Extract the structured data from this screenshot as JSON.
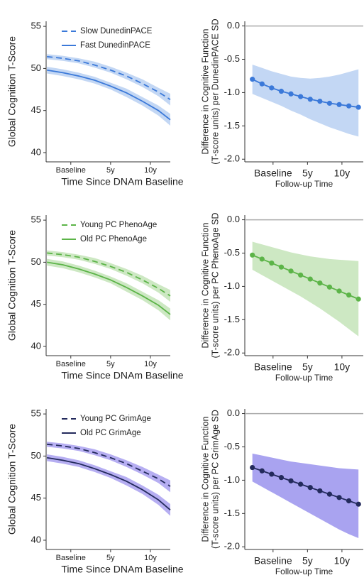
{
  "chart_data": [
    {
      "type": "line",
      "ylabel": "Global Cognition T-Score",
      "xlabel": "Time Since DNAm Baseline",
      "legend": "upper left",
      "x": [
        -3,
        -1,
        1,
        3,
        5,
        7,
        9,
        11,
        12.5
      ],
      "xlim": [
        -3.1,
        12.5
      ],
      "ylim": [
        38.9,
        55.6
      ],
      "xticks": [
        {
          "value": 0,
          "label": "Baseline"
        },
        {
          "value": 5,
          "label": "5y"
        },
        {
          "value": 10,
          "label": "10y"
        }
      ],
      "yticks": [
        40,
        45,
        50,
        55
      ],
      "series": [
        {
          "name": "Slow DunedinPACE",
          "color": "#3b79d9",
          "band_color": "#c3d7f4",
          "linestyle": "dashed",
          "values": [
            51.4,
            51.2,
            50.9,
            50.4,
            49.8,
            49.1,
            48.2,
            47.2,
            46.3
          ],
          "lower": [
            51.1,
            50.9,
            50.6,
            50.1,
            49.5,
            48.7,
            47.8,
            46.7,
            45.6
          ],
          "upper": [
            51.7,
            51.5,
            51.2,
            50.8,
            50.2,
            49.5,
            48.7,
            47.7,
            47.0
          ]
        },
        {
          "name": "Fast DunedinPACE",
          "color": "#3b79d9",
          "band_color": "#c3d7f4",
          "linestyle": "solid",
          "values": [
            49.8,
            49.5,
            49.1,
            48.6,
            47.9,
            47.1,
            46.1,
            45.0,
            43.9
          ],
          "lower": [
            49.4,
            49.1,
            48.7,
            48.2,
            47.5,
            46.6,
            45.6,
            44.4,
            43.2
          ],
          "upper": [
            50.2,
            49.9,
            49.5,
            49.0,
            48.3,
            47.6,
            46.6,
            45.6,
            44.6
          ]
        }
      ]
    },
    {
      "type": "line",
      "ylabel": [
        "Difference in Cognitive Function",
        "(T-score units) per DunedinPACE SD"
      ],
      "xlabel": "Follow-up Time",
      "markers": true,
      "refline": 0,
      "x": [
        -3,
        -1.6,
        -0.2,
        1.2,
        2.6,
        4,
        5.4,
        6.8,
        8.2,
        9.6,
        11,
        12.4
      ],
      "xlim": [
        -4.1,
        13.1
      ],
      "ylim": [
        -2.04,
        0.07
      ],
      "xticks": [
        {
          "value": 0,
          "label": "Baseline"
        },
        {
          "value": 5,
          "label": "5y"
        },
        {
          "value": 10,
          "label": "10y"
        }
      ],
      "yticks": [
        {
          "value": 0,
          "label": "0.0"
        },
        -0.5,
        {
          "value": -1,
          "label": "-1.0"
        },
        -1.5,
        {
          "value": -2,
          "label": "-2.0"
        }
      ],
      "series": [
        {
          "color": "#3b79d9",
          "band_color": "#c3d7f4",
          "linestyle": "solid",
          "values": [
            -0.8,
            -0.87,
            -0.93,
            -0.98,
            -1.02,
            -1.06,
            -1.1,
            -1.13,
            -1.16,
            -1.18,
            -1.2,
            -1.22
          ],
          "lower": [
            -1.02,
            -1.08,
            -1.14,
            -1.2,
            -1.27,
            -1.33,
            -1.4,
            -1.46,
            -1.52,
            -1.57,
            -1.62,
            -1.66
          ],
          "upper": [
            -0.58,
            -0.63,
            -0.68,
            -0.72,
            -0.76,
            -0.78,
            -0.79,
            -0.78,
            -0.76,
            -0.73,
            -0.69,
            -0.65
          ]
        }
      ]
    },
    {
      "type": "line",
      "ylabel": "Global Cognition T-Score",
      "xlabel": "Time Since DNAm Baseline",
      "legend": "upper left",
      "x": [
        -3,
        -1,
        1,
        3,
        5,
        7,
        9,
        11,
        12.5
      ],
      "xlim": [
        -3.1,
        12.5
      ],
      "ylim": [
        38.9,
        55.6
      ],
      "xticks": [
        {
          "value": 0,
          "label": "Baseline"
        },
        {
          "value": 5,
          "label": "5y"
        },
        {
          "value": 10,
          "label": "10y"
        }
      ],
      "yticks": [
        40,
        45,
        50,
        55
      ],
      "series": [
        {
          "name": "Young PC PhenoAge",
          "color": "#5cb448",
          "band_color": "#cde8c3",
          "linestyle": "dashed",
          "values": [
            51.1,
            50.9,
            50.6,
            50.1,
            49.5,
            48.8,
            47.9,
            46.9,
            46.0
          ],
          "lower": [
            50.8,
            50.6,
            50.3,
            49.8,
            49.2,
            48.4,
            47.5,
            46.4,
            45.3
          ],
          "upper": [
            51.4,
            51.2,
            50.9,
            50.5,
            49.9,
            49.2,
            48.4,
            47.4,
            46.7
          ]
        },
        {
          "name": "Old PC PhenoAge",
          "color": "#5cb448",
          "band_color": "#cde8c3",
          "linestyle": "solid",
          "values": [
            50.0,
            49.7,
            49.2,
            48.6,
            47.9,
            47.0,
            46.0,
            44.9,
            43.8
          ],
          "lower": [
            49.6,
            49.3,
            48.8,
            48.2,
            47.5,
            46.5,
            45.5,
            44.3,
            43.1
          ],
          "upper": [
            50.4,
            50.1,
            49.6,
            49.0,
            48.3,
            47.5,
            46.5,
            45.5,
            44.5
          ]
        }
      ]
    },
    {
      "type": "line",
      "ylabel": [
        "Difference in Cognitive Function",
        "(T-score units) per PC PhenoAge SD"
      ],
      "xlabel": "Follow-up Time",
      "markers": true,
      "refline": 0,
      "x": [
        -3,
        -1.6,
        -0.2,
        1.2,
        2.6,
        4,
        5.4,
        6.8,
        8.2,
        9.6,
        11,
        12.4
      ],
      "xlim": [
        -4.1,
        13.1
      ],
      "ylim": [
        -2.04,
        0.07
      ],
      "xticks": [
        {
          "value": 0,
          "label": "Baseline"
        },
        {
          "value": 5,
          "label": "5y"
        },
        {
          "value": 10,
          "label": "10y"
        }
      ],
      "yticks": [
        {
          "value": 0,
          "label": "0.0"
        },
        -0.5,
        {
          "value": -1,
          "label": "-1.0"
        },
        -1.5,
        {
          "value": -2,
          "label": "-2.0"
        }
      ],
      "series": [
        {
          "color": "#5cb448",
          "band_color": "#cde8c3",
          "linestyle": "solid",
          "values": [
            -0.53,
            -0.59,
            -0.65,
            -0.71,
            -0.77,
            -0.83,
            -0.89,
            -0.95,
            -1.01,
            -1.07,
            -1.13,
            -1.19
          ],
          "lower": [
            -0.75,
            -0.83,
            -0.91,
            -0.99,
            -1.07,
            -1.15,
            -1.24,
            -1.33,
            -1.43,
            -1.53,
            -1.64,
            -1.75
          ],
          "upper": [
            -0.33,
            -0.37,
            -0.41,
            -0.45,
            -0.49,
            -0.52,
            -0.55,
            -0.57,
            -0.59,
            -0.6,
            -0.61,
            -0.62
          ]
        }
      ]
    },
    {
      "type": "line",
      "ylabel": "Global Cognition T-Score",
      "xlabel": "Time Since DNAm Baseline",
      "legend": "upper left",
      "x": [
        -3,
        -1,
        1,
        3,
        5,
        7,
        9,
        11,
        12.5
      ],
      "xlim": [
        -3.1,
        12.5
      ],
      "ylim": [
        38.9,
        55.6
      ],
      "xticks": [
        {
          "value": 0,
          "label": "Baseline"
        },
        {
          "value": 5,
          "label": "5y"
        },
        {
          "value": 10,
          "label": "10y"
        }
      ],
      "yticks": [
        40,
        45,
        50,
        55
      ],
      "series": [
        {
          "name": "Young PC GrimAge",
          "color": "#232a5c",
          "band_color": "#b6aef2",
          "linestyle": "dashed",
          "values": [
            51.4,
            51.2,
            50.9,
            50.4,
            49.8,
            49.1,
            48.2,
            47.3,
            46.4
          ],
          "lower": [
            51.1,
            50.9,
            50.6,
            50.1,
            49.5,
            48.7,
            47.8,
            46.8,
            45.7
          ],
          "upper": [
            51.7,
            51.5,
            51.2,
            50.8,
            50.2,
            49.5,
            48.7,
            47.8,
            47.1
          ]
        },
        {
          "name": "Old PC GrimAge",
          "color": "#232a5c",
          "band_color": "#b6aef2",
          "linestyle": "solid",
          "values": [
            49.8,
            49.5,
            49.1,
            48.5,
            47.8,
            47.0,
            46.0,
            44.8,
            43.6
          ],
          "lower": [
            49.4,
            49.1,
            48.7,
            48.1,
            47.4,
            46.5,
            45.5,
            44.2,
            42.9
          ],
          "upper": [
            50.2,
            49.9,
            49.5,
            48.9,
            48.2,
            47.5,
            46.5,
            45.4,
            44.3
          ]
        }
      ]
    },
    {
      "type": "line",
      "ylabel": [
        "Difference in Cognitive Function",
        "(T-score units) per PC GrimAge SD"
      ],
      "xlabel": "Follow-up Time",
      "markers": true,
      "refline": 0,
      "x": [
        -3,
        -1.6,
        -0.2,
        1.2,
        2.6,
        4,
        5.4,
        6.8,
        8.2,
        9.6,
        11,
        12.4
      ],
      "xlim": [
        -4.1,
        13.1
      ],
      "ylim": [
        -2.04,
        0.07
      ],
      "xticks": [
        {
          "value": 0,
          "label": "Baseline"
        },
        {
          "value": 5,
          "label": "5y"
        },
        {
          "value": 10,
          "label": "10y"
        }
      ],
      "yticks": [
        {
          "value": 0,
          "label": "0.0"
        },
        -0.5,
        {
          "value": -1,
          "label": "-1.0"
        },
        -1.5,
        {
          "value": -2,
          "label": "-2.0"
        }
      ],
      "series": [
        {
          "color": "#232a5c",
          "band_color": "#a9a3f0",
          "linestyle": "solid",
          "values": [
            -0.81,
            -0.86,
            -0.91,
            -0.96,
            -1.01,
            -1.06,
            -1.11,
            -1.16,
            -1.21,
            -1.26,
            -1.31,
            -1.36
          ],
          "lower": [
            -1.02,
            -1.1,
            -1.18,
            -1.26,
            -1.34,
            -1.42,
            -1.5,
            -1.58,
            -1.66,
            -1.74,
            -1.81,
            -1.87
          ],
          "upper": [
            -0.6,
            -0.63,
            -0.66,
            -0.69,
            -0.72,
            -0.74,
            -0.76,
            -0.78,
            -0.8,
            -0.82,
            -0.83,
            -0.84
          ]
        }
      ]
    }
  ]
}
